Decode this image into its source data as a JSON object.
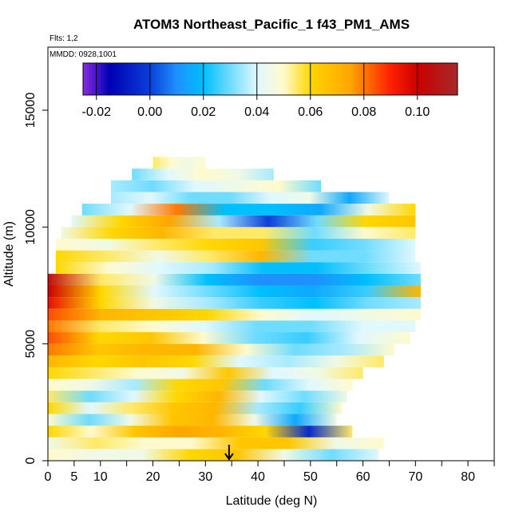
{
  "chart_data": {
    "type": "heatmap",
    "title": "ATOM3 Northeast_Pacific_1 f43_PM1_AMS",
    "flights_note": "Flts: 1,2",
    "date_note": "MMDD: 0928,1001",
    "xlabel": "Latitude (deg N)",
    "ylabel": "Altitude (m)",
    "xlim": [
      0,
      85
    ],
    "ylim": [
      0,
      17700
    ],
    "x_ticks": [
      0,
      5,
      10,
      20,
      30,
      40,
      50,
      60,
      70,
      80
    ],
    "x_minor_ticks": [
      15,
      25,
      35,
      45,
      55,
      65,
      75,
      85
    ],
    "y_ticks": [
      0,
      5000,
      10000,
      15000
    ],
    "colorbar": {
      "vmin": -0.025,
      "vmax": 0.115,
      "ticks": [
        -0.02,
        0.0,
        0.02,
        0.04,
        0.06,
        0.08,
        0.1
      ],
      "tick_labels": [
        "-0.02",
        "0.00",
        "0.02",
        "0.04",
        "0.06",
        "0.08",
        "0.10"
      ],
      "stops": [
        {
          "v": -0.025,
          "color": "#8a2be2"
        },
        {
          "v": -0.015,
          "color": "#0000b4"
        },
        {
          "v": 0.0,
          "color": "#0a3fd8"
        },
        {
          "v": 0.01,
          "color": "#1e90ff"
        },
        {
          "v": 0.02,
          "color": "#00bfff"
        },
        {
          "v": 0.04,
          "color": "#e0f8ff"
        },
        {
          "v": 0.05,
          "color": "#fffacd"
        },
        {
          "v": 0.06,
          "color": "#ffd700"
        },
        {
          "v": 0.075,
          "color": "#ffa500"
        },
        {
          "v": 0.09,
          "color": "#ff2000"
        },
        {
          "v": 0.1,
          "color": "#cc0000"
        },
        {
          "v": 0.115,
          "color": "#a52a2a"
        }
      ]
    },
    "marker_latitude": 34.5,
    "bands": [
      {
        "alt": [
          0,
          500
        ],
        "xmax": 63,
        "values": [
          0.05,
          0.045,
          0.045,
          0.06,
          0.065,
          0.045,
          0.03,
          0.04
        ]
      },
      {
        "alt": [
          500,
          1000
        ],
        "xmax": 64,
        "values": [
          0.045,
          0.055,
          0.05,
          0.05,
          0.065,
          0.065,
          0.045,
          0.05
        ]
      },
      {
        "alt": [
          1000,
          1500
        ],
        "xmax": 58,
        "values": [
          0.06,
          0.05,
          0.065,
          0.075,
          0.07,
          0.06,
          -0.005,
          0.055
        ]
      },
      {
        "alt": [
          1500,
          2000
        ],
        "xmax": 55,
        "values": [
          0.05,
          0.03,
          0.045,
          0.065,
          0.07,
          0.045,
          0.015,
          0.045
        ]
      },
      {
        "alt": [
          2000,
          2500
        ],
        "xmax": 56,
        "values": [
          0.06,
          0.04,
          0.055,
          0.065,
          0.07,
          0.035,
          0.025,
          0.05
        ]
      },
      {
        "alt": [
          2500,
          3000
        ],
        "xmax": 57,
        "values": [
          0.055,
          0.03,
          0.04,
          0.06,
          0.07,
          0.04,
          0.03,
          0.045
        ]
      },
      {
        "alt": [
          3000,
          3500
        ],
        "xmax": 58,
        "values": [
          0.05,
          0.045,
          0.035,
          0.06,
          0.065,
          0.03,
          0.04,
          0.05
        ]
      },
      {
        "alt": [
          3500,
          4000
        ],
        "xmax": 60,
        "values": [
          0.06,
          0.055,
          0.05,
          0.045,
          0.065,
          0.04,
          0.045,
          0.055
        ]
      },
      {
        "alt": [
          4000,
          4500
        ],
        "xmax": 64,
        "values": [
          0.07,
          0.06,
          0.065,
          0.06,
          0.04,
          0.035,
          0.045,
          0.055
        ]
      },
      {
        "alt": [
          4500,
          5000
        ],
        "xmax": 66,
        "values": [
          0.08,
          0.065,
          0.07,
          0.07,
          0.05,
          0.03,
          0.035,
          0.05
        ]
      },
      {
        "alt": [
          5000,
          5500
        ],
        "xmax": 69,
        "values": [
          0.085,
          0.06,
          0.065,
          0.05,
          0.03,
          0.025,
          0.04,
          0.05
        ]
      },
      {
        "alt": [
          5500,
          6000
        ],
        "xmax": 70,
        "values": [
          0.08,
          0.055,
          0.05,
          0.04,
          0.03,
          0.03,
          0.04,
          0.04
        ]
      },
      {
        "alt": [
          6000,
          6500
        ],
        "xmax": 71,
        "values": [
          0.085,
          0.07,
          0.065,
          0.06,
          0.05,
          0.04,
          0.045,
          0.05
        ]
      },
      {
        "alt": [
          6500,
          7000
        ],
        "xmax": 71,
        "values": [
          0.095,
          0.06,
          0.045,
          0.035,
          0.025,
          0.02,
          0.03,
          0.035
        ]
      },
      {
        "alt": [
          7000,
          7500
        ],
        "xmax": 71,
        "values": [
          0.1,
          0.06,
          0.04,
          0.03,
          0.02,
          0.015,
          0.025,
          0.07
        ]
      },
      {
        "alt": [
          7500,
          8000
        ],
        "xmax": 71,
        "values": [
          0.105,
          0.055,
          0.045,
          0.02,
          0.01,
          0.01,
          0.02,
          0.03
        ]
      },
      {
        "alt": [
          8000,
          8500
        ],
        "xmax": 71,
        "values": [
          0.06,
          0.05,
          0.04,
          0.035,
          0.02,
          0.02,
          0.03,
          0.04
        ]
      },
      {
        "alt": [
          8500,
          9000
        ],
        "xmax": 70,
        "values": [
          0.06,
          0.055,
          0.045,
          0.055,
          0.07,
          0.03,
          0.03,
          0.04
        ]
      },
      {
        "alt": [
          9000,
          9500
        ],
        "xmax": 70,
        "values": [
          0.05,
          0.045,
          0.055,
          0.06,
          0.065,
          0.025,
          0.03,
          0.04
        ]
      },
      {
        "alt": [
          9500,
          10000
        ],
        "xmax": 70,
        "values": [
          0.045,
          0.06,
          0.07,
          0.055,
          0.055,
          0.03,
          0.05,
          0.055
        ]
      },
      {
        "alt": [
          10000,
          10500
        ],
        "xmax": 70,
        "values": [
          0.04,
          0.06,
          0.075,
          0.035,
          0.0,
          0.03,
          0.06,
          0.065
        ]
      },
      {
        "alt": [
          10500,
          11000
        ],
        "xmax": 70,
        "values": [
          0.03,
          0.04,
          0.08,
          0.02,
          0.02,
          0.015,
          0.045,
          0.06
        ]
      },
      {
        "alt": [
          11000,
          11500
        ],
        "xmax": 65,
        "values": [
          0.035,
          0.04,
          0.03,
          0.03,
          0.04,
          0.045,
          0.015,
          0.04
        ]
      },
      {
        "alt": [
          11500,
          12000
        ],
        "xmax": 52,
        "values": [
          0.035,
          0.03,
          0.04,
          0.045,
          0.05,
          0.03
        ]
      },
      {
        "alt": [
          12000,
          12500
        ],
        "xmax": 43,
        "values": [
          0.03,
          0.04,
          0.05,
          0.045,
          0.035
        ]
      },
      {
        "alt": [
          12500,
          13000
        ],
        "xmax": 30,
        "values": [
          0.055,
          0.05,
          0.045,
          0.05
        ]
      }
    ]
  }
}
